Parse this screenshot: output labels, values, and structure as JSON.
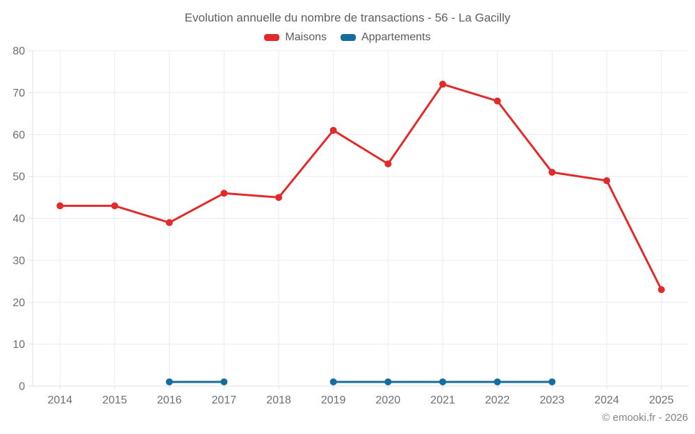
{
  "chart_data": {
    "type": "line",
    "title": "Evolution annuelle du nombre de transactions - 56 - La Gacilly",
    "categories": [
      "2014",
      "2015",
      "2016",
      "2017",
      "2018",
      "2019",
      "2020",
      "2021",
      "2022",
      "2023",
      "2024",
      "2025"
    ],
    "series": [
      {
        "name": "Maisons",
        "color": "#e22a2a",
        "values": [
          43,
          43,
          39,
          46,
          45,
          61,
          53,
          72,
          68,
          51,
          49,
          23
        ]
      },
      {
        "name": "Appartements",
        "color": "#176c9e",
        "values": [
          null,
          null,
          1,
          1,
          null,
          1,
          1,
          1,
          1,
          1,
          null,
          null
        ]
      }
    ],
    "ylim": [
      0,
      80
    ],
    "ytick_step": 10,
    "grid": true,
    "legend_position": "top"
  },
  "footer": {
    "credit": "© emooki.fr - 2026"
  },
  "colors": {
    "grid": "#ebebeb",
    "axis": "#e0e0e0",
    "tick_text": "#6b6f73"
  }
}
